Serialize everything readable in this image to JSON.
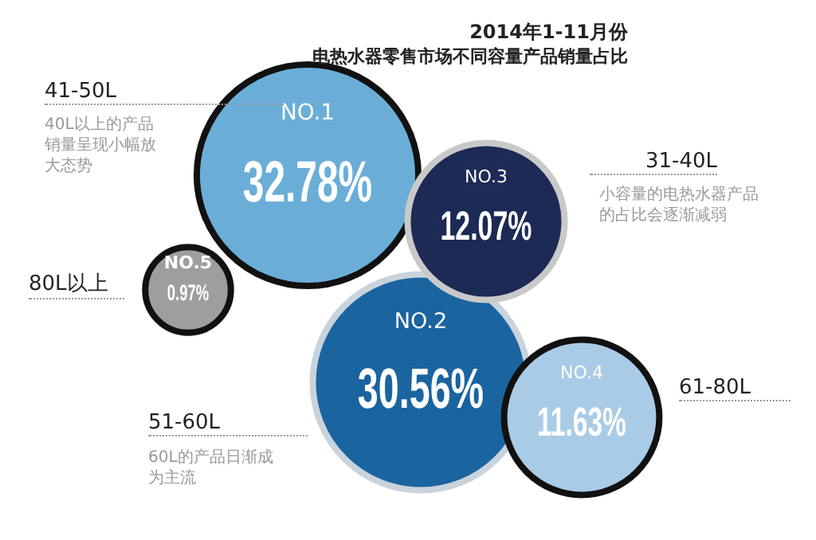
{
  "chart_data": {
    "type": "other",
    "title": "2014年1-11月份",
    "subtitle": "电热水器零售市场不同容量产品销量占比",
    "categories": [
      "41-50L",
      "51-60L",
      "31-40L",
      "61-80L",
      "80L以上"
    ],
    "values": [
      32.78,
      30.56,
      12.07,
      11.63,
      0.97
    ],
    "value_labels": [
      "32.78%",
      "30.56%",
      "12.07%",
      "11.63%",
      "0.97%"
    ],
    "colors": [
      "#6aaed8",
      "#1a64a0",
      "#1c2a55",
      "#a9cbe6",
      "#9e9e9e"
    ],
    "annotations": [
      "NO.1",
      "NO.2",
      "NO.3",
      "NO.4",
      "NO.5",
      "40L以上的产品销量呈现小幅放大态势",
      "60L的产品日渐成为主流",
      "小容量的电热水器产品的占比会逐渐减弱"
    ]
  }
}
